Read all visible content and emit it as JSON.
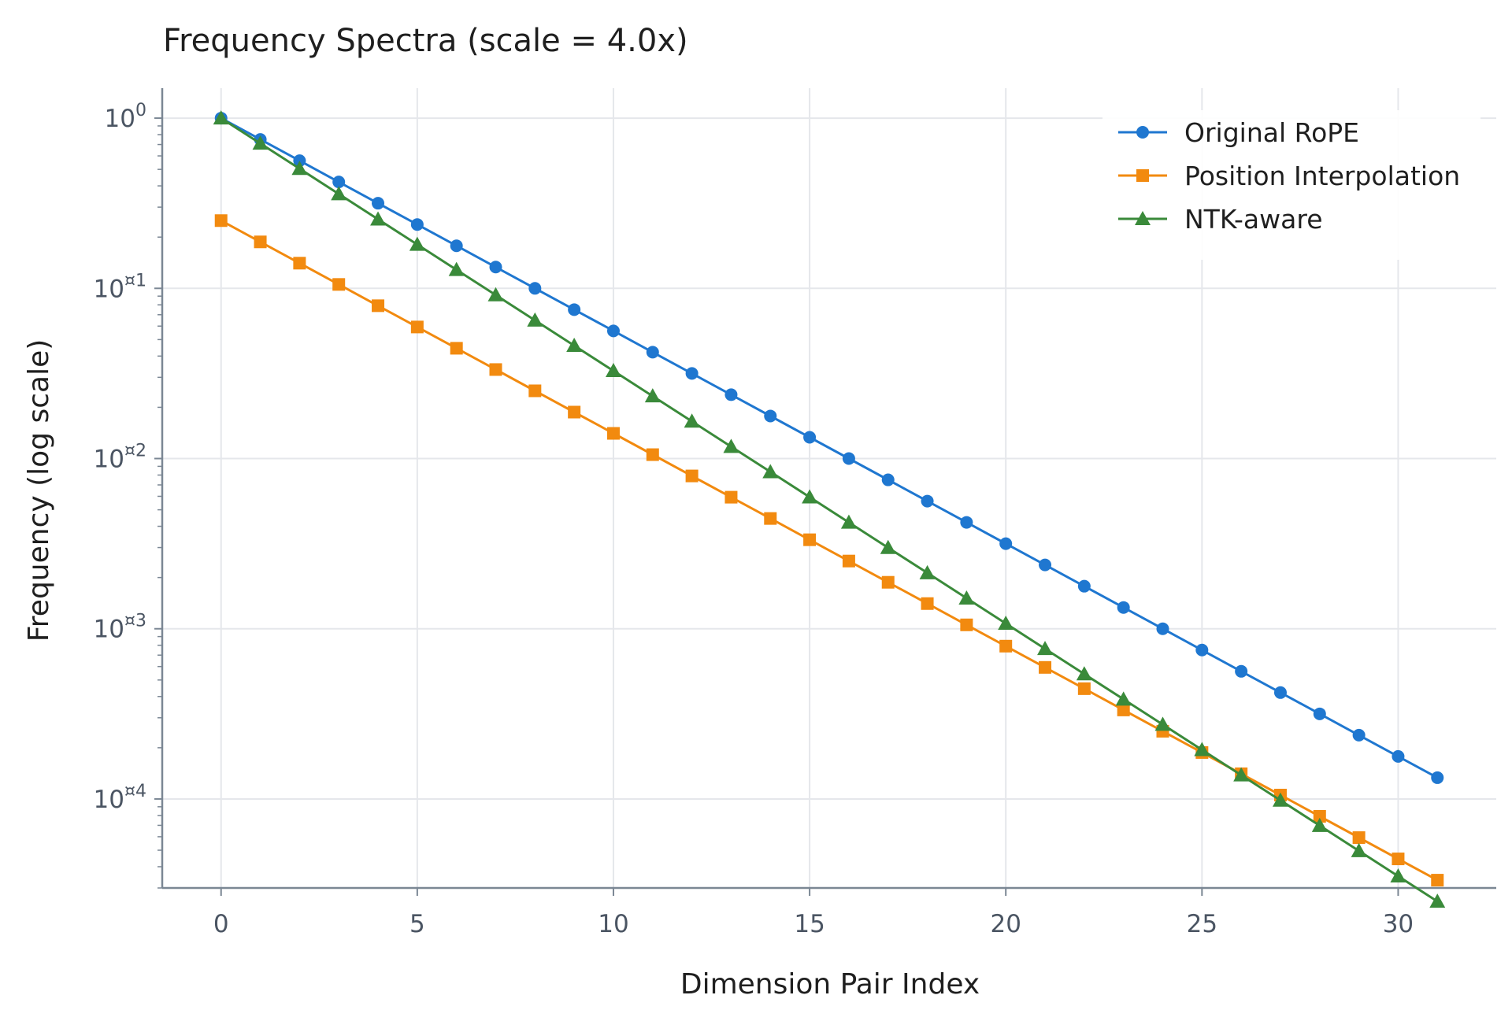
{
  "chart_data": {
    "type": "line",
    "title": "Frequency Spectra (scale = 4.0x)",
    "xlabel": "Dimension Pair Index",
    "ylabel": "Frequency (log scale)",
    "x_scale": "linear",
    "y_scale": "log",
    "xlim": [
      -1.5,
      32.5
    ],
    "ylim": [
      3e-05,
      1.5
    ],
    "x_ticks": [
      0,
      5,
      10,
      15,
      20,
      25,
      30
    ],
    "x_tick_labels": [
      "0",
      "5",
      "10",
      "15",
      "20",
      "25",
      "30"
    ],
    "y_ticks": [
      1,
      0.1,
      0.01,
      0.001,
      0.0001
    ],
    "y_tick_labels": [
      {
        "base": "10",
        "exp": "0"
      },
      {
        "base": "10",
        "exp": "¤1"
      },
      {
        "base": "10",
        "exp": "¤2"
      },
      {
        "base": "10",
        "exp": "¤3"
      },
      {
        "base": "10",
        "exp": "¤4"
      }
    ],
    "grid": true,
    "legend_position": "top-right",
    "x": [
      0,
      1,
      2,
      3,
      4,
      5,
      6,
      7,
      8,
      9,
      10,
      11,
      12,
      13,
      14,
      15,
      16,
      17,
      18,
      19,
      20,
      21,
      22,
      23,
      24,
      25,
      26,
      27,
      28,
      29,
      30,
      31
    ],
    "series": [
      {
        "name": "Original RoPE",
        "color": "#1f77d0",
        "marker": "circle",
        "formula": "10000^(-x/32)"
      },
      {
        "name": "Position Interpolation",
        "color": "#f28a0f",
        "marker": "square",
        "formula": "0.25 * 10000^(-x/32)"
      },
      {
        "name": "NTK-aware",
        "color": "#3a8a3a",
        "marker": "triangle",
        "formula": "40000^(-x/31)"
      }
    ]
  }
}
